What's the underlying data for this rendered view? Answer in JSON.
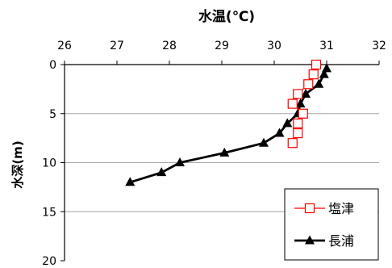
{
  "chart_data": {
    "type": "line",
    "title": "水温(℃)",
    "xlabel": "水温(℃)",
    "ylabel": "水深(m)",
    "xlim": [
      26,
      32
    ],
    "ylim": [
      0,
      20
    ],
    "x_ticks": [
      "26",
      "27",
      "28",
      "29",
      "30",
      "31",
      "32"
    ],
    "y_ticks": [
      "0",
      "5",
      "10",
      "15",
      "20"
    ],
    "x_axis_position": "top",
    "y_inverted": true,
    "grid": "horizontal",
    "legend_position": "bottom-right",
    "series": [
      {
        "name": "塩津",
        "color": "#ff0000",
        "marker": "open-square",
        "points": [
          {
            "x": 30.8,
            "y": 0
          },
          {
            "x": 30.75,
            "y": 1
          },
          {
            "x": 30.65,
            "y": 2
          },
          {
            "x": 30.45,
            "y": 3
          },
          {
            "x": 30.35,
            "y": 4
          },
          {
            "x": 30.55,
            "y": 5
          },
          {
            "x": 30.45,
            "y": 6
          },
          {
            "x": 30.45,
            "y": 7
          },
          {
            "x": 30.35,
            "y": 8
          }
        ]
      },
      {
        "name": "長浦",
        "color": "#000000",
        "marker": "filled-triangle",
        "points": [
          {
            "x": 31.0,
            "y": 0.4
          },
          {
            "x": 30.95,
            "y": 1
          },
          {
            "x": 30.85,
            "y": 2
          },
          {
            "x": 30.6,
            "y": 3
          },
          {
            "x": 30.5,
            "y": 4
          },
          {
            "x": 30.45,
            "y": 5
          },
          {
            "x": 30.25,
            "y": 6
          },
          {
            "x": 30.1,
            "y": 7
          },
          {
            "x": 29.8,
            "y": 8
          },
          {
            "x": 29.05,
            "y": 9
          },
          {
            "x": 28.2,
            "y": 10
          },
          {
            "x": 27.85,
            "y": 11
          },
          {
            "x": 27.25,
            "y": 12
          }
        ]
      }
    ]
  }
}
